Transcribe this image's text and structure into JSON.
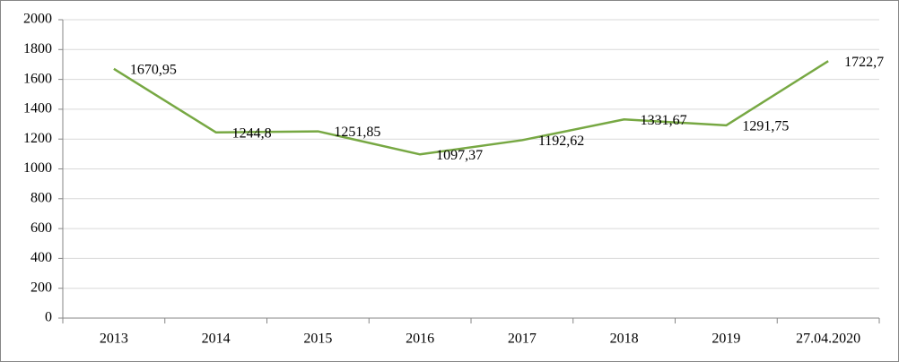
{
  "chart_data": {
    "type": "line",
    "categories": [
      "2013",
      "2014",
      "2015",
      "2016",
      "2017",
      "2018",
      "2019",
      "27.04.2020"
    ],
    "series": [
      {
        "color": "#77a843",
        "values": [
          1670.95,
          1244.8,
          1251.85,
          1097.37,
          1192.62,
          1331.67,
          1291.75,
          1722.7
        ],
        "value_labels": [
          "1670,95",
          "1244,8",
          "1251,85",
          "1097,37",
          "1192,62",
          "1331,67",
          "1291,75",
          "1722,7"
        ]
      }
    ],
    "ylim": [
      0,
      2000
    ],
    "yticks": [
      0,
      200,
      400,
      600,
      800,
      1000,
      1200,
      1400,
      1600,
      1800,
      2000
    ],
    "grid": true
  }
}
